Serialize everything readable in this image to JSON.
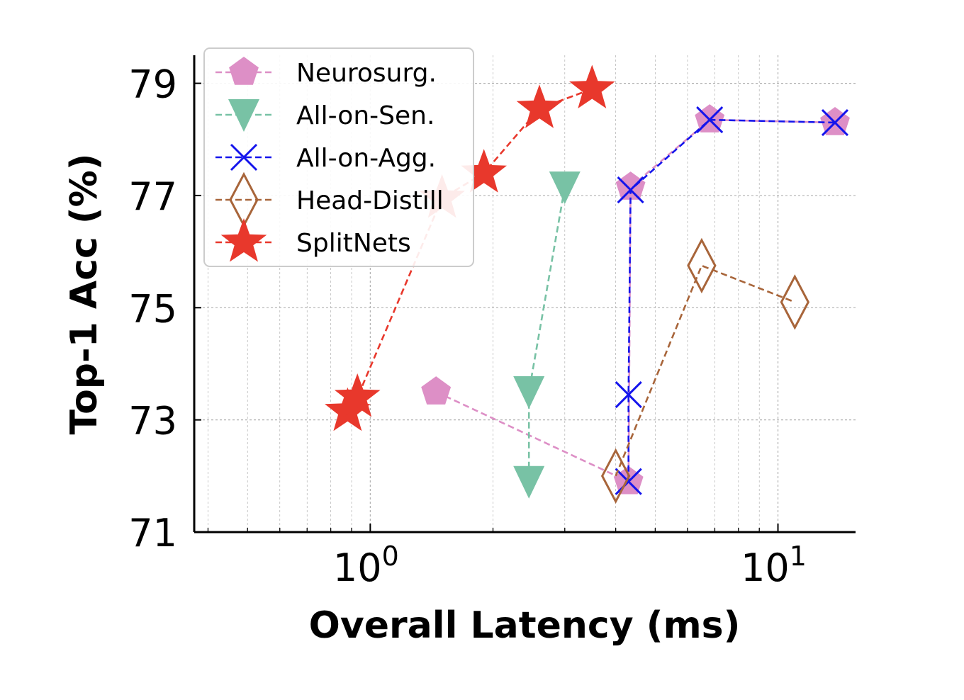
{
  "chart_data": {
    "type": "line",
    "xlabel": "Overall Latency (ms)",
    "ylabel": "Top-1 Acc (%)",
    "xscale": "log",
    "xlim": [
      0.37,
      15.5
    ],
    "ylim": [
      71,
      79.5
    ],
    "xticks": [
      {
        "value": 1,
        "base": "10",
        "exp": "0"
      },
      {
        "value": 10,
        "base": "10",
        "exp": "1"
      }
    ],
    "yticks": [
      71,
      73,
      75,
      77,
      79
    ],
    "grid": true,
    "legend_position": "top-left",
    "series": [
      {
        "name": "Neurosurg.",
        "color": "#dd8fc6",
        "marker": "pentagon",
        "points": [
          {
            "x": 1.45,
            "y": 73.5
          },
          {
            "x": 4.3,
            "y": 71.9
          },
          {
            "x": 4.35,
            "y": 77.15
          },
          {
            "x": 6.8,
            "y": 78.35
          },
          {
            "x": 13.8,
            "y": 78.3
          }
        ]
      },
      {
        "name": "All-on-Sen.",
        "color": "#78c2a5",
        "marker": "triangle-down",
        "points": [
          {
            "x": 3.0,
            "y": 77.15
          },
          {
            "x": 2.45,
            "y": 73.5
          },
          {
            "x": 2.45,
            "y": 71.9
          }
        ]
      },
      {
        "name": "All-on-Agg.",
        "color": "#1414ec",
        "marker": "x",
        "points": [
          {
            "x": 4.3,
            "y": 71.9
          },
          {
            "x": 4.3,
            "y": 73.45
          },
          {
            "x": 4.35,
            "y": 77.1
          },
          {
            "x": 6.8,
            "y": 78.35
          },
          {
            "x": 13.8,
            "y": 78.3
          }
        ]
      },
      {
        "name": "Head-Distill",
        "color": "#a8653a",
        "marker": "diamond",
        "points": [
          {
            "x": 4.0,
            "y": 72.0
          },
          {
            "x": 6.5,
            "y": 75.75
          },
          {
            "x": 11.0,
            "y": 75.1
          }
        ]
      },
      {
        "name": "SplitNets",
        "color": "#e8382c",
        "marker": "star",
        "points": [
          {
            "x": 0.88,
            "y": 73.15
          },
          {
            "x": 0.93,
            "y": 73.4
          },
          {
            "x": 1.5,
            "y": 76.95
          },
          {
            "x": 1.9,
            "y": 77.4
          },
          {
            "x": 2.6,
            "y": 78.55
          },
          {
            "x": 3.5,
            "y": 78.9
          }
        ]
      }
    ]
  }
}
